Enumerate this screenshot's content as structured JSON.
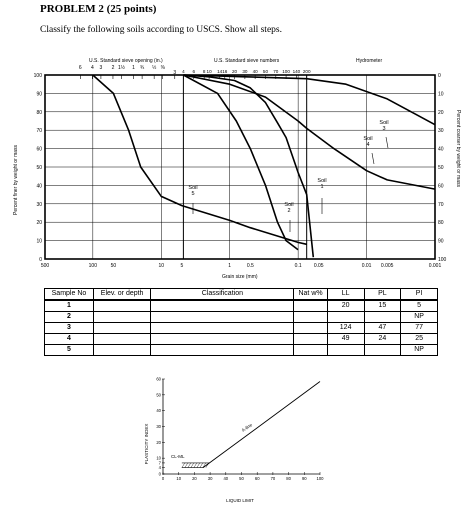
{
  "heading": "PROBLEM 2 (25 points)",
  "instruction": "Classify the following soils according to USCS.  Show all steps.",
  "grain_chart": {
    "top_labels": {
      "sieve_opening": "U.S. Standard sieve opening (in.)",
      "sieve_numbers": "U.S. Standard sieve numbers",
      "hydrometer": "Hydrometer"
    },
    "sieve_inch_ticks": [
      "6",
      "4",
      "3",
      "2",
      "1½",
      "1",
      "¾",
      "½",
      "⅜",
      "3"
    ],
    "sieve_number_ticks": [
      "4",
      "6",
      "8",
      "10",
      "14",
      "16",
      "20",
      "30",
      "40",
      "50",
      "70",
      "100",
      "140",
      "200"
    ],
    "x_ticks": [
      "500",
      "100",
      "50",
      "10",
      "5",
      "1",
      "0.5",
      "0.1",
      "0.05",
      "0.01",
      "0.005",
      "0.001"
    ],
    "y_left_ticks": [
      "100",
      "90",
      "80",
      "70",
      "60",
      "50",
      "40",
      "30",
      "20",
      "10",
      "0"
    ],
    "y_right_ticks": [
      "0",
      "10",
      "20",
      "30",
      "40",
      "50",
      "60",
      "70",
      "80",
      "90",
      "100"
    ],
    "ylabel_left": "Percent finer by weight or mass",
    "ylabel_right": "Percent coarser by weight or mass",
    "xlabel": "Grain size (mm)",
    "soil_labels": {
      "s1": "Soil\n1",
      "s2": "Soil\n2",
      "s3": "Soil\n3",
      "s4": "Soil\n4",
      "s5": "Soil\n5"
    }
  },
  "table": {
    "headers": [
      "Sample No",
      "Elev. or depth",
      "Classification",
      "Nat w%",
      "LL",
      "PL",
      "PI"
    ],
    "rows": [
      [
        "1",
        "",
        "",
        "",
        "20",
        "15",
        "5"
      ],
      [
        "2",
        "",
        "",
        "",
        "",
        "",
        "NP"
      ],
      [
        "3",
        "",
        "",
        "",
        "124",
        "47",
        "77"
      ],
      [
        "4",
        "",
        "",
        "",
        "49",
        "24",
        "25"
      ],
      [
        "5",
        "",
        "",
        "",
        "",
        "",
        "NP"
      ]
    ]
  },
  "plasticity_chart": {
    "ylabel": "PLASTICITY INDEX",
    "xlabel": "LIQUID LIMIT",
    "y_ticks": [
      "60",
      "50",
      "40",
      "30",
      "20",
      "10",
      "7",
      "4",
      "0"
    ],
    "x_ticks": [
      "0",
      "10",
      "20",
      "30",
      "40",
      "50",
      "60",
      "70",
      "80",
      "90",
      "100"
    ],
    "a_line_label": "A-line",
    "clml_label": "CL-ML"
  },
  "chart_data": [
    {
      "type": "line",
      "title": "",
      "xlabel": "Grain size (mm)",
      "ylabel": "Percent finer by weight or mass",
      "x_scale": "log",
      "xlim": [
        500,
        0.001
      ],
      "ylim": [
        0,
        100
      ],
      "series": [
        {
          "name": "Soil 1",
          "x": [
            4.75,
            2,
            0.85,
            0.5,
            0.3,
            0.2,
            0.15,
            0.1,
            0.075,
            0.06
          ],
          "y": [
            100,
            99,
            97,
            93,
            85,
            74,
            66,
            47,
            35,
            1
          ]
        },
        {
          "name": "Soil 2",
          "x": [
            4.75,
            1.5,
            0.8,
            0.5,
            0.3,
            0.2,
            0.15,
            0.1
          ],
          "y": [
            100,
            90,
            75,
            60,
            40,
            20,
            10,
            5
          ]
        },
        {
          "name": "Soil 3",
          "x": [
            4.75,
            0.6,
            0.075,
            0.02,
            0.005,
            0.002,
            0.001
          ],
          "y": [
            100,
            99,
            98,
            95,
            87,
            79,
            73
          ]
        },
        {
          "name": "Soil 4",
          "x": [
            4.75,
            1,
            0.3,
            0.1,
            0.075,
            0.03,
            0.01,
            0.005,
            0.001
          ],
          "y": [
            100,
            95,
            88,
            75,
            71,
            60,
            48,
            43,
            38
          ]
        },
        {
          "name": "Soil 5",
          "x": [
            100,
            50,
            30,
            20,
            10,
            5,
            1,
            0.5,
            0.1,
            0.075
          ],
          "y": [
            100,
            90,
            70,
            50,
            34,
            29,
            21,
            17,
            9,
            8
          ]
        }
      ]
    },
    {
      "type": "line",
      "title": "",
      "xlabel": "LIQUID LIMIT",
      "ylabel": "PLASTICITY INDEX",
      "xlim": [
        0,
        100
      ],
      "ylim": [
        0,
        60
      ],
      "series": [
        {
          "name": "A-line",
          "x": [
            25.5,
            100
          ],
          "y": [
            4,
            58.4
          ]
        }
      ]
    }
  ]
}
